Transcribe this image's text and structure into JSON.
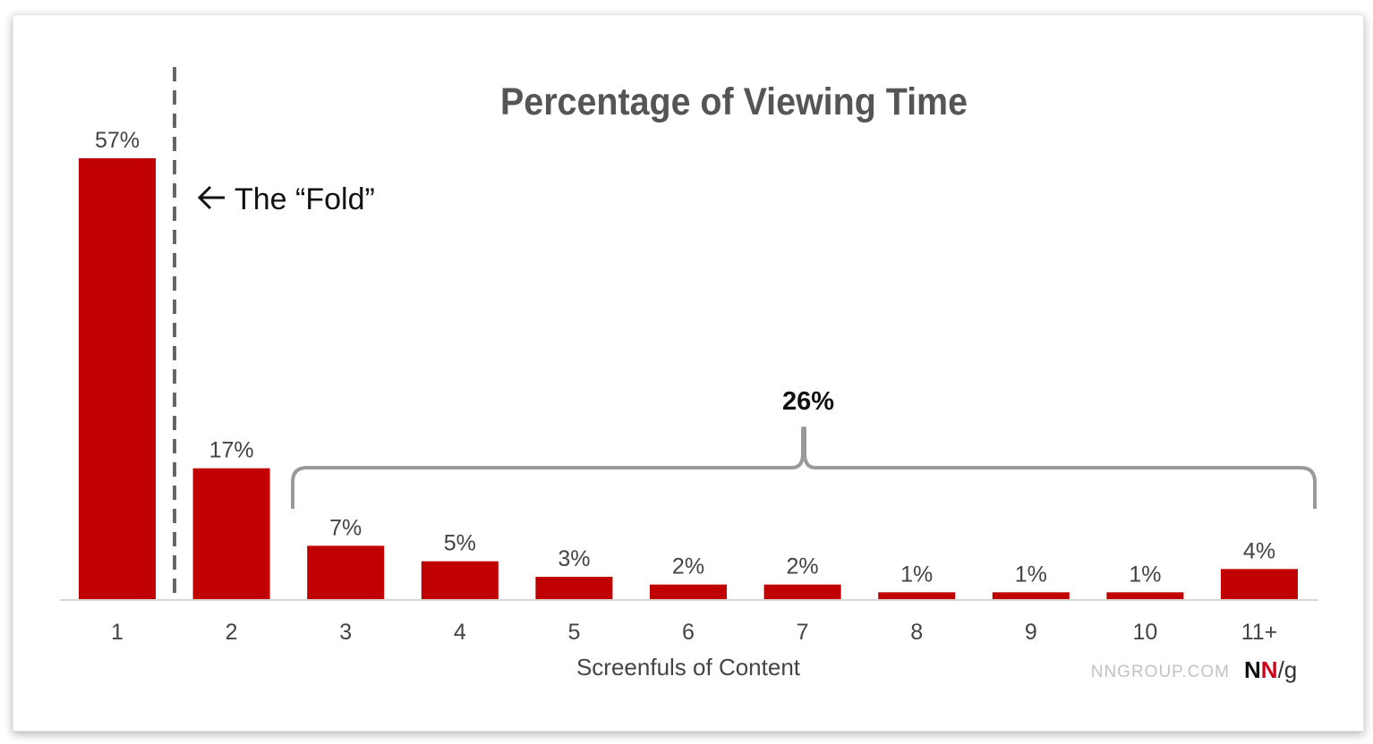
{
  "chart_data": {
    "type": "bar",
    "title": "Percentage of Viewing Time",
    "xlabel": "Screenfuls of Content",
    "ylabel": "",
    "categories": [
      "1",
      "2",
      "3",
      "4",
      "5",
      "6",
      "7",
      "8",
      "9",
      "10",
      "11+"
    ],
    "values": [
      57,
      17,
      7,
      5,
      3,
      2,
      2,
      1,
      1,
      1,
      4
    ],
    "value_labels": [
      "57%",
      "17%",
      "7%",
      "5%",
      "3%",
      "2%",
      "2%",
      "1%",
      "1%",
      "1%",
      "4%"
    ],
    "ylim": [
      0,
      57
    ],
    "grid": false,
    "annotations": {
      "fold_label": "The “Fold”",
      "bracket_total": "26%"
    },
    "colors": {
      "bar": "#c00000",
      "title": "#555555",
      "text": "#444444",
      "bracket": "#9a9a9a",
      "fold_line": "#666666",
      "axis": "#d6d6d6",
      "brand_gray": "#c2c2c2",
      "brand_red": "#d0021b"
    }
  },
  "brand": {
    "site": "NNGROUP.COM",
    "logo_n1": "N",
    "logo_n2": "N",
    "logo_g": "/g"
  }
}
